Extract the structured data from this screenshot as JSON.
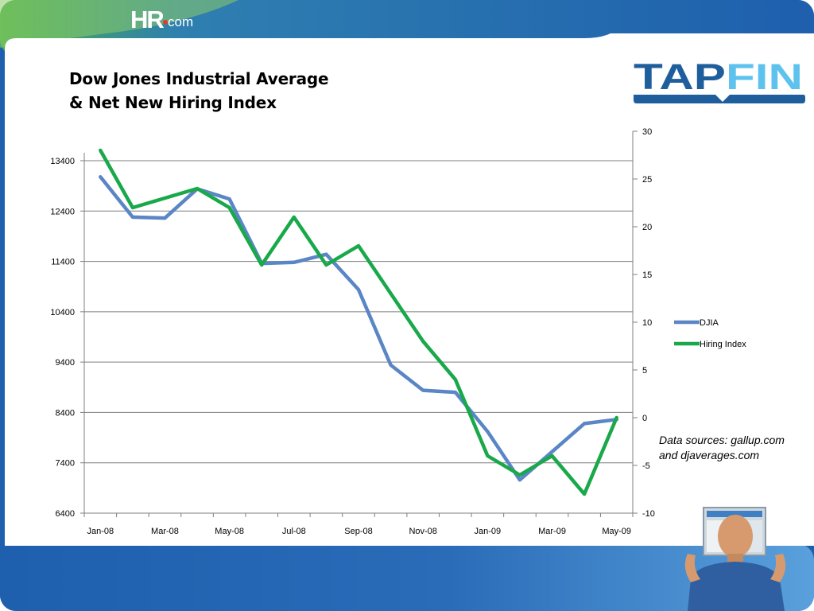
{
  "header": {
    "logo_main": "HR",
    "logo_suffix": "com"
  },
  "slide": {
    "title_line1": "Dow Jones Industrial Average",
    "title_line2": "& Net New Hiring Index",
    "source_line1": "Data sources: gallup.com",
    "source_line2": "and djaverages.com"
  },
  "brand": {
    "text": "TAPFIN",
    "color_tap": "#1f5e9c",
    "color_fin": "#5dc3ee"
  },
  "colors": {
    "header_blue": "#1e5fae",
    "grid": "#7f7f7f",
    "djia": "#5a86c6",
    "hiring": "#19a84a"
  },
  "chart_data": {
    "type": "line",
    "x": [
      "Jan-08",
      "Feb-08",
      "Mar-08",
      "Apr-08",
      "May-08",
      "Jun-08",
      "Jul-08",
      "Aug-08",
      "Sep-08",
      "Oct-08",
      "Nov-08",
      "Dec-08",
      "Jan-09",
      "Feb-09",
      "Mar-09",
      "Apr-09",
      "May-09"
    ],
    "x_tick_labels": [
      "Jan-08",
      "Mar-08",
      "May-08",
      "Jul-08",
      "Sep-08",
      "Nov-08",
      "Jan-09",
      "Mar-09",
      "May-09"
    ],
    "series": [
      {
        "name": "DJIA",
        "axis": "left",
        "color": "#5a86c6",
        "values": [
          13080,
          12280,
          12260,
          12840,
          12640,
          11360,
          11380,
          11540,
          10840,
          9340,
          8840,
          8800,
          8020,
          7060,
          7620,
          8180,
          8260
        ]
      },
      {
        "name": "Hiring Index",
        "axis": "right",
        "color": "#19a84a",
        "values": [
          28,
          22,
          23,
          24,
          22,
          16,
          21,
          16,
          18,
          13,
          8,
          4,
          -4,
          -6,
          -4,
          -8,
          0
        ]
      }
    ],
    "y_left": {
      "min": 6400,
      "max": 13400,
      "ticks": [
        6400,
        7400,
        8400,
        9400,
        10400,
        11400,
        12400,
        13400
      ]
    },
    "y_right": {
      "min": -10,
      "max": 30,
      "ticks": [
        -10,
        -5,
        0,
        5,
        10,
        15,
        20,
        25,
        30
      ]
    },
    "grid": true,
    "legend_position": "right"
  }
}
